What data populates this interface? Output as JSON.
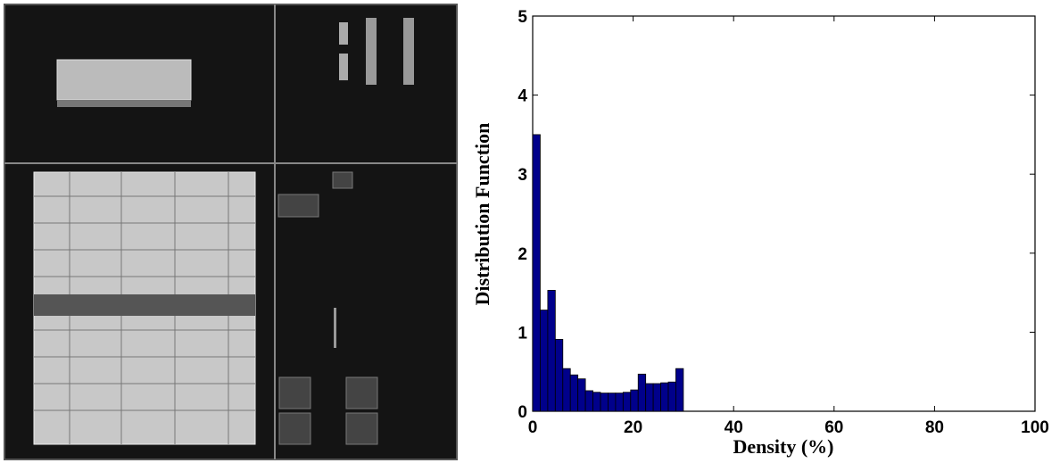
{
  "chart_data": {
    "type": "histogram",
    "xlabel": "Density (%)",
    "ylabel": "Distribution Function",
    "bins": [
      0,
      1.5,
      3,
      4.5,
      6,
      7.5,
      9,
      10.5,
      12,
      13.5,
      15,
      16.5,
      18,
      19.5,
      21,
      22.5,
      24,
      25.5,
      27,
      28.5,
      30
    ],
    "values": [
      3.5,
      1.28,
      1.53,
      0.91,
      0.54,
      0.46,
      0.41,
      0.26,
      0.24,
      0.23,
      0.23,
      0.23,
      0.24,
      0.27,
      0.47,
      0.35,
      0.35,
      0.36,
      0.37,
      0.54
    ],
    "color": "#00008b",
    "xlim": [
      0,
      100
    ],
    "xticks": [
      0,
      20,
      40,
      60,
      80,
      100
    ],
    "ylim": [
      0,
      5
    ],
    "yticks": [
      0,
      1,
      2,
      3,
      4,
      5
    ]
  }
}
